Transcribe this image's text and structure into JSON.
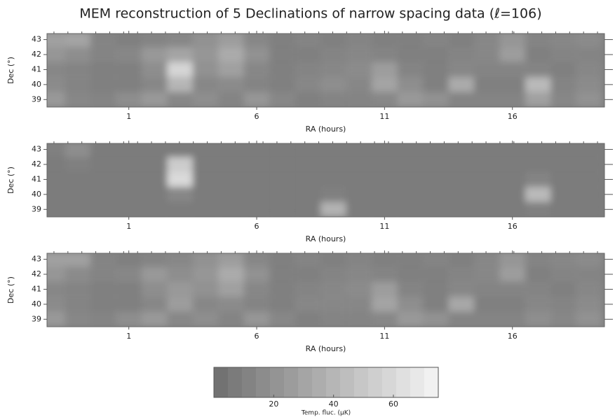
{
  "title": "MEM reconstruction of 5 Declinations of narrow spacing data (ℓ=106)",
  "colorbar": {
    "label": "Temp. fluc. (µK)",
    "lim": [
      0,
      75
    ],
    "ticks": [
      20,
      40,
      60
    ],
    "colors": [
      "#6e6e6e",
      "#f5f5f5"
    ]
  },
  "chart_data": [
    {
      "type": "heatmap",
      "xlabel": "RA (hours)",
      "ylabel": "Dec (°)",
      "xlim": [
        -2.2,
        19.6
      ],
      "ylim": [
        38.5,
        43.4
      ],
      "xticks": [
        1,
        6,
        11,
        16
      ],
      "yticks": [
        39,
        40,
        41,
        42,
        43
      ],
      "x": [
        -2,
        -1,
        0,
        1,
        2,
        3,
        4,
        5,
        6,
        7,
        8,
        9,
        10,
        11,
        12,
        13,
        14,
        15,
        16,
        17,
        18,
        19
      ],
      "y": [
        43,
        42,
        41,
        40,
        39
      ],
      "z": [
        [
          28,
          30,
          12,
          10,
          12,
          14,
          20,
          26,
          14,
          10,
          12,
          10,
          12,
          10,
          10,
          12,
          10,
          14,
          22,
          12,
          14,
          16
        ],
        [
          22,
          18,
          12,
          14,
          24,
          30,
          22,
          34,
          20,
          10,
          10,
          12,
          14,
          12,
          10,
          10,
          12,
          14,
          26,
          10,
          12,
          12
        ],
        [
          14,
          12,
          10,
          10,
          18,
          58,
          20,
          28,
          14,
          10,
          12,
          14,
          16,
          26,
          12,
          10,
          14,
          12,
          12,
          12,
          10,
          14
        ],
        [
          16,
          12,
          10,
          10,
          14,
          40,
          14,
          16,
          12,
          10,
          14,
          18,
          14,
          30,
          18,
          10,
          34,
          10,
          10,
          42,
          12,
          16
        ],
        [
          24,
          14,
          12,
          18,
          24,
          14,
          18,
          12,
          22,
          14,
          10,
          12,
          12,
          14,
          24,
          20,
          12,
          12,
          12,
          28,
          14,
          20
        ]
      ]
    },
    {
      "type": "heatmap",
      "xlabel": "RA (hours)",
      "ylabel": "Dec (°)",
      "xlim": [
        -2.2,
        19.6
      ],
      "ylim": [
        38.5,
        43.4
      ],
      "xticks": [
        1,
        6,
        11,
        16
      ],
      "yticks": [
        39,
        40,
        41,
        42,
        43
      ],
      "x": [
        -2,
        -1,
        0,
        1,
        2,
        3,
        4,
        5,
        6,
        7,
        8,
        9,
        10,
        11,
        12,
        13,
        14,
        15,
        16,
        17,
        18,
        19
      ],
      "y": [
        43,
        42,
        41,
        40,
        39
      ],
      "z": [
        [
          10,
          18,
          8,
          8,
          8,
          8,
          8,
          8,
          8,
          8,
          8,
          8,
          8,
          8,
          8,
          8,
          8,
          8,
          8,
          8,
          8,
          8
        ],
        [
          8,
          10,
          8,
          8,
          8,
          52,
          8,
          8,
          8,
          8,
          8,
          8,
          8,
          8,
          8,
          8,
          8,
          8,
          8,
          8,
          8,
          8
        ],
        [
          8,
          8,
          8,
          8,
          8,
          60,
          8,
          8,
          8,
          8,
          8,
          8,
          8,
          8,
          8,
          8,
          8,
          8,
          8,
          12,
          8,
          8
        ],
        [
          8,
          8,
          8,
          8,
          8,
          14,
          8,
          8,
          8,
          8,
          8,
          10,
          8,
          8,
          8,
          8,
          8,
          8,
          8,
          42,
          8,
          8
        ],
        [
          8,
          8,
          8,
          8,
          8,
          8,
          8,
          8,
          8,
          8,
          8,
          38,
          8,
          8,
          8,
          8,
          8,
          8,
          8,
          10,
          8,
          8
        ]
      ]
    },
    {
      "type": "heatmap",
      "xlabel": "RA (hours)",
      "ylabel": "Dec (°)",
      "xlim": [
        -2.2,
        19.6
      ],
      "ylim": [
        38.5,
        43.4
      ],
      "xticks": [
        1,
        6,
        11,
        16
      ],
      "yticks": [
        39,
        40,
        41,
        42,
        43
      ],
      "x": [
        -2,
        -1,
        0,
        1,
        2,
        3,
        4,
        5,
        6,
        7,
        8,
        9,
        10,
        11,
        12,
        13,
        14,
        15,
        16,
        17,
        18,
        19
      ],
      "y": [
        43,
        42,
        41,
        40,
        39
      ],
      "z": [
        [
          28,
          28,
          12,
          10,
          12,
          14,
          20,
          26,
          14,
          10,
          12,
          10,
          12,
          10,
          10,
          12,
          10,
          14,
          22,
          12,
          14,
          16
        ],
        [
          22,
          16,
          12,
          14,
          24,
          18,
          22,
          34,
          20,
          10,
          10,
          12,
          14,
          12,
          10,
          10,
          12,
          14,
          26,
          10,
          12,
          12
        ],
        [
          14,
          12,
          10,
          10,
          18,
          24,
          20,
          28,
          14,
          10,
          12,
          14,
          16,
          26,
          12,
          10,
          14,
          12,
          12,
          12,
          10,
          14
        ],
        [
          16,
          12,
          10,
          10,
          14,
          26,
          14,
          16,
          12,
          10,
          14,
          14,
          14,
          30,
          18,
          10,
          32,
          10,
          10,
          14,
          12,
          16
        ],
        [
          24,
          14,
          12,
          18,
          24,
          14,
          18,
          12,
          22,
          14,
          10,
          12,
          12,
          14,
          24,
          20,
          12,
          12,
          12,
          18,
          14,
          20
        ]
      ]
    }
  ]
}
